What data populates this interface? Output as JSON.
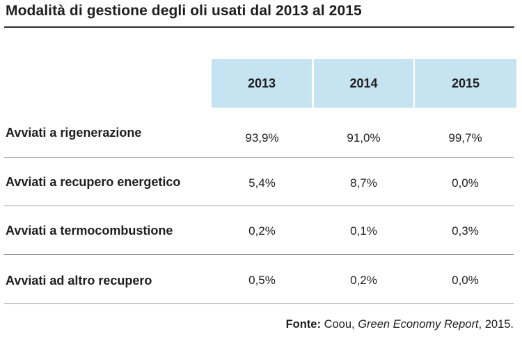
{
  "title": "Modalità di gestione degli oli usati dal 2013 al 2015",
  "table": {
    "columns": [
      "2013",
      "2014",
      "2015"
    ],
    "rows": [
      {
        "label": "Avviati a rigenerazione",
        "values": [
          "93,9%",
          "91,0%",
          "99,7%"
        ]
      },
      {
        "label": "Avviati a recupero energetico",
        "values": [
          "5,4%",
          "8,7%",
          "0,0%"
        ]
      },
      {
        "label": "Avviati a termocombustione",
        "values": [
          "0,2%",
          "0,1%",
          "0,3%"
        ]
      },
      {
        "label": "Avviati ad altro recupero",
        "values": [
          "0,5%",
          "0,2%",
          "0,0%"
        ]
      }
    ]
  },
  "source": {
    "prefix": "Fonte:",
    "org": "Coou,",
    "report": "Green Economy Report",
    "suffix": ", 2015."
  },
  "colors": {
    "header_bg": "#c5e3f0",
    "text": "#1e1e1e",
    "rule": "#2f2f2f",
    "separator": "#9a9a9a"
  }
}
